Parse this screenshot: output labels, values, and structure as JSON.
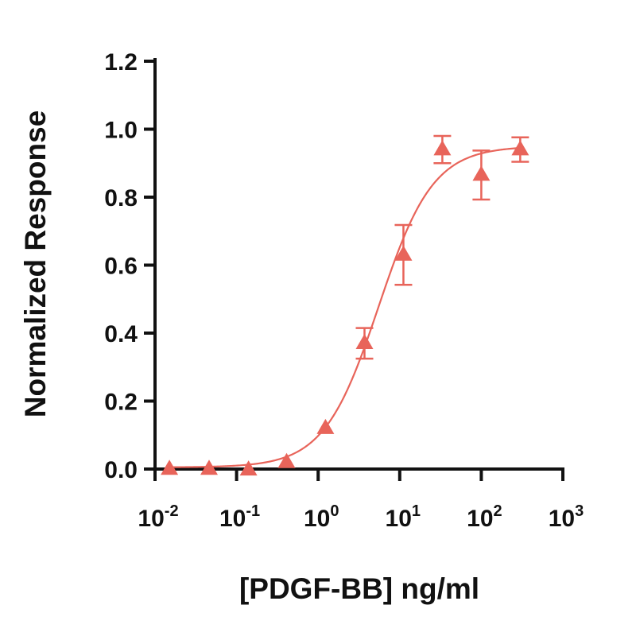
{
  "chart_data": {
    "type": "scatter",
    "title": "",
    "xlabel": "[PDGF-BB] ng/ml",
    "ylabel": "Normalized Response",
    "x_scale": "log10",
    "xlim": [
      0.01,
      1000
    ],
    "ylim": [
      0,
      1.2
    ],
    "x_ticks": [
      {
        "value": 0.01,
        "base": "10",
        "exp": "-2"
      },
      {
        "value": 0.1,
        "base": "10",
        "exp": "-1"
      },
      {
        "value": 1,
        "base": "10",
        "exp": "0"
      },
      {
        "value": 10,
        "base": "10",
        "exp": "1"
      },
      {
        "value": 100,
        "base": "10",
        "exp": "2"
      },
      {
        "value": 1000,
        "base": "10",
        "exp": "3"
      }
    ],
    "y_ticks": [
      "0.0",
      "0.2",
      "0.4",
      "0.6",
      "0.8",
      "1.0",
      "1.2"
    ],
    "grid": false,
    "legend": "none",
    "color": "#E8645A",
    "marker": "triangle",
    "series": [
      {
        "points": [
          {
            "x": 0.015,
            "y": 0.0,
            "err": 0
          },
          {
            "x": 0.046,
            "y": 0.0,
            "err": 0
          },
          {
            "x": 0.14,
            "y": -0.002,
            "err": 0
          },
          {
            "x": 0.41,
            "y": 0.02,
            "err": 0
          },
          {
            "x": 1.23,
            "y": 0.12,
            "err": 0
          },
          {
            "x": 3.7,
            "y": 0.37,
            "err": 0.045
          },
          {
            "x": 11.1,
            "y": 0.63,
            "err": 0.088
          },
          {
            "x": 33.3,
            "y": 0.94,
            "err": 0.04
          },
          {
            "x": 100,
            "y": 0.865,
            "err": 0.072
          },
          {
            "x": 300,
            "y": 0.94,
            "err": 0.036
          }
        ]
      }
    ],
    "fit_curve": {
      "model": "four-parameter logistic",
      "bottom": 0.005,
      "top": 0.95,
      "ec50": 5.5,
      "hill": 1.3
    }
  }
}
